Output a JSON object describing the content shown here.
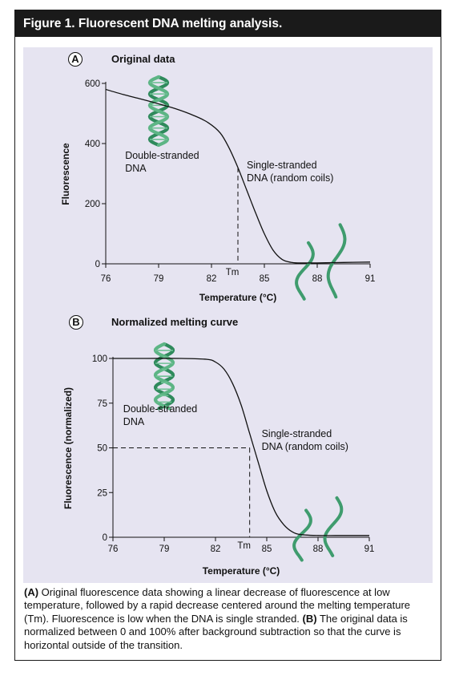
{
  "header": {
    "title": "Figure 1. Fluorescent DNA melting analysis."
  },
  "chart_data": [
    {
      "type": "line",
      "panel_label": "A",
      "title": "Original data",
      "xlabel": "Temperature (°C)",
      "ylabel": "Fluorescence",
      "xlim": [
        76,
        91
      ],
      "ylim": [
        0,
        600
      ],
      "xticks": [
        "76",
        "79",
        "82",
        "85",
        "88",
        "91"
      ],
      "yticks": [
        "0",
        "200",
        "400",
        "600"
      ],
      "x": [
        76,
        77,
        78,
        79,
        80,
        81,
        81.8,
        82.5,
        83.0,
        83.5,
        84.0,
        84.5,
        85.0,
        85.5,
        86.0,
        86.5,
        87.0,
        88,
        89,
        90,
        91
      ],
      "y": [
        580,
        563,
        548,
        532,
        515,
        493,
        470,
        435,
        385,
        320,
        245,
        170,
        100,
        45,
        15,
        5,
        3,
        3,
        4,
        5,
        6
      ],
      "tm": 83.5,
      "annotations": {
        "tm_label": "Tm",
        "ds_line1": "Double-stranded",
        "ds_line2": "DNA",
        "ss_line1": "Single-stranded",
        "ss_line2": "DNA (random coils)"
      },
      "colors": {
        "helix": "#3a9a6a",
        "curve": "#111111"
      }
    },
    {
      "type": "line",
      "panel_label": "B",
      "title": "Normalized melting curve",
      "xlabel": "Temperature (°C)",
      "ylabel": "Fluorescence (normalized)",
      "xlim": [
        76,
        91
      ],
      "ylim": [
        0,
        100
      ],
      "xticks": [
        "76",
        "79",
        "82",
        "85",
        "88",
        "91"
      ],
      "yticks": [
        "0",
        "25",
        "50",
        "75",
        "100"
      ],
      "x": [
        76,
        78,
        80,
        81.5,
        82.0,
        82.5,
        83.0,
        83.5,
        84.0,
        84.5,
        85.0,
        85.5,
        86.0,
        86.5,
        87.0,
        88,
        89,
        90,
        91
      ],
      "y": [
        100,
        100,
        100,
        99.5,
        98,
        94,
        86,
        74,
        58,
        42,
        26,
        14,
        7,
        3,
        1.5,
        1,
        1,
        1,
        1
      ],
      "tm": 84.0,
      "annotations": {
        "tm_label": "Tm",
        "ds_line1": "Double-stranded",
        "ds_line2": "DNA",
        "ss_line1": "Single-stranded",
        "ss_line2": "DNA (random coils)"
      },
      "colors": {
        "helix": "#3a9a6a",
        "curve": "#111111"
      }
    }
  ],
  "caption": {
    "a_label": "(A)",
    "a_text": " Original fluorescence data showing a linear decrease of fluorescence at low temperature, followed by a rapid decrease centered around the melting temperature (Tm). Fluorescence is low when the DNA is single stranded. ",
    "b_label": "(B)",
    "b_text": " The original data is normalized between 0 and 100% after background subtraction so that the curve is horizontal outside of the transition."
  }
}
